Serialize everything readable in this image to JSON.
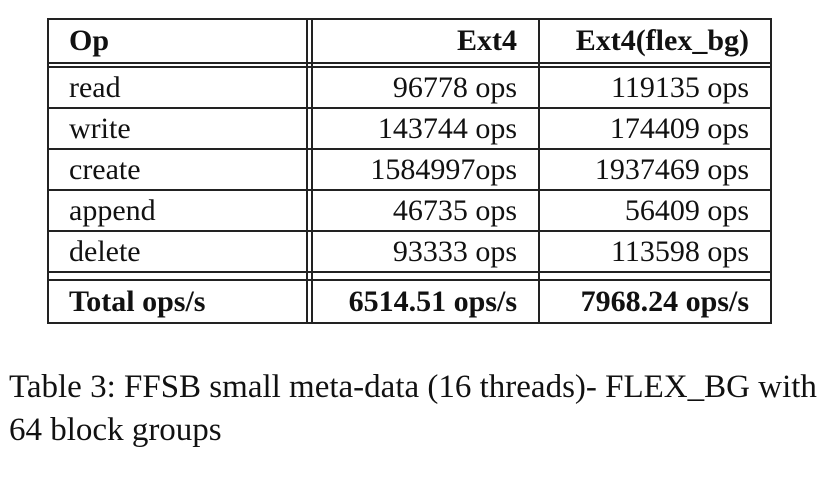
{
  "table": {
    "headers": [
      "Op",
      "Ext4",
      "Ext4(flex_bg)"
    ],
    "rows": [
      [
        "read",
        "96778 ops",
        "119135 ops"
      ],
      [
        "write",
        "143744 ops",
        "174409 ops"
      ],
      [
        "create",
        "1584997ops",
        "1937469 ops"
      ],
      [
        "append",
        "46735 ops",
        "56409 ops"
      ],
      [
        "delete",
        "93333 ops",
        "113598 ops"
      ]
    ],
    "total": [
      "Total ops/s",
      "6514.51 ops/s",
      "7968.24 ops/s"
    ]
  },
  "caption": "Table 3: FFSB small meta-data (16 threads)- FLEX_BG with 64 block groups"
}
